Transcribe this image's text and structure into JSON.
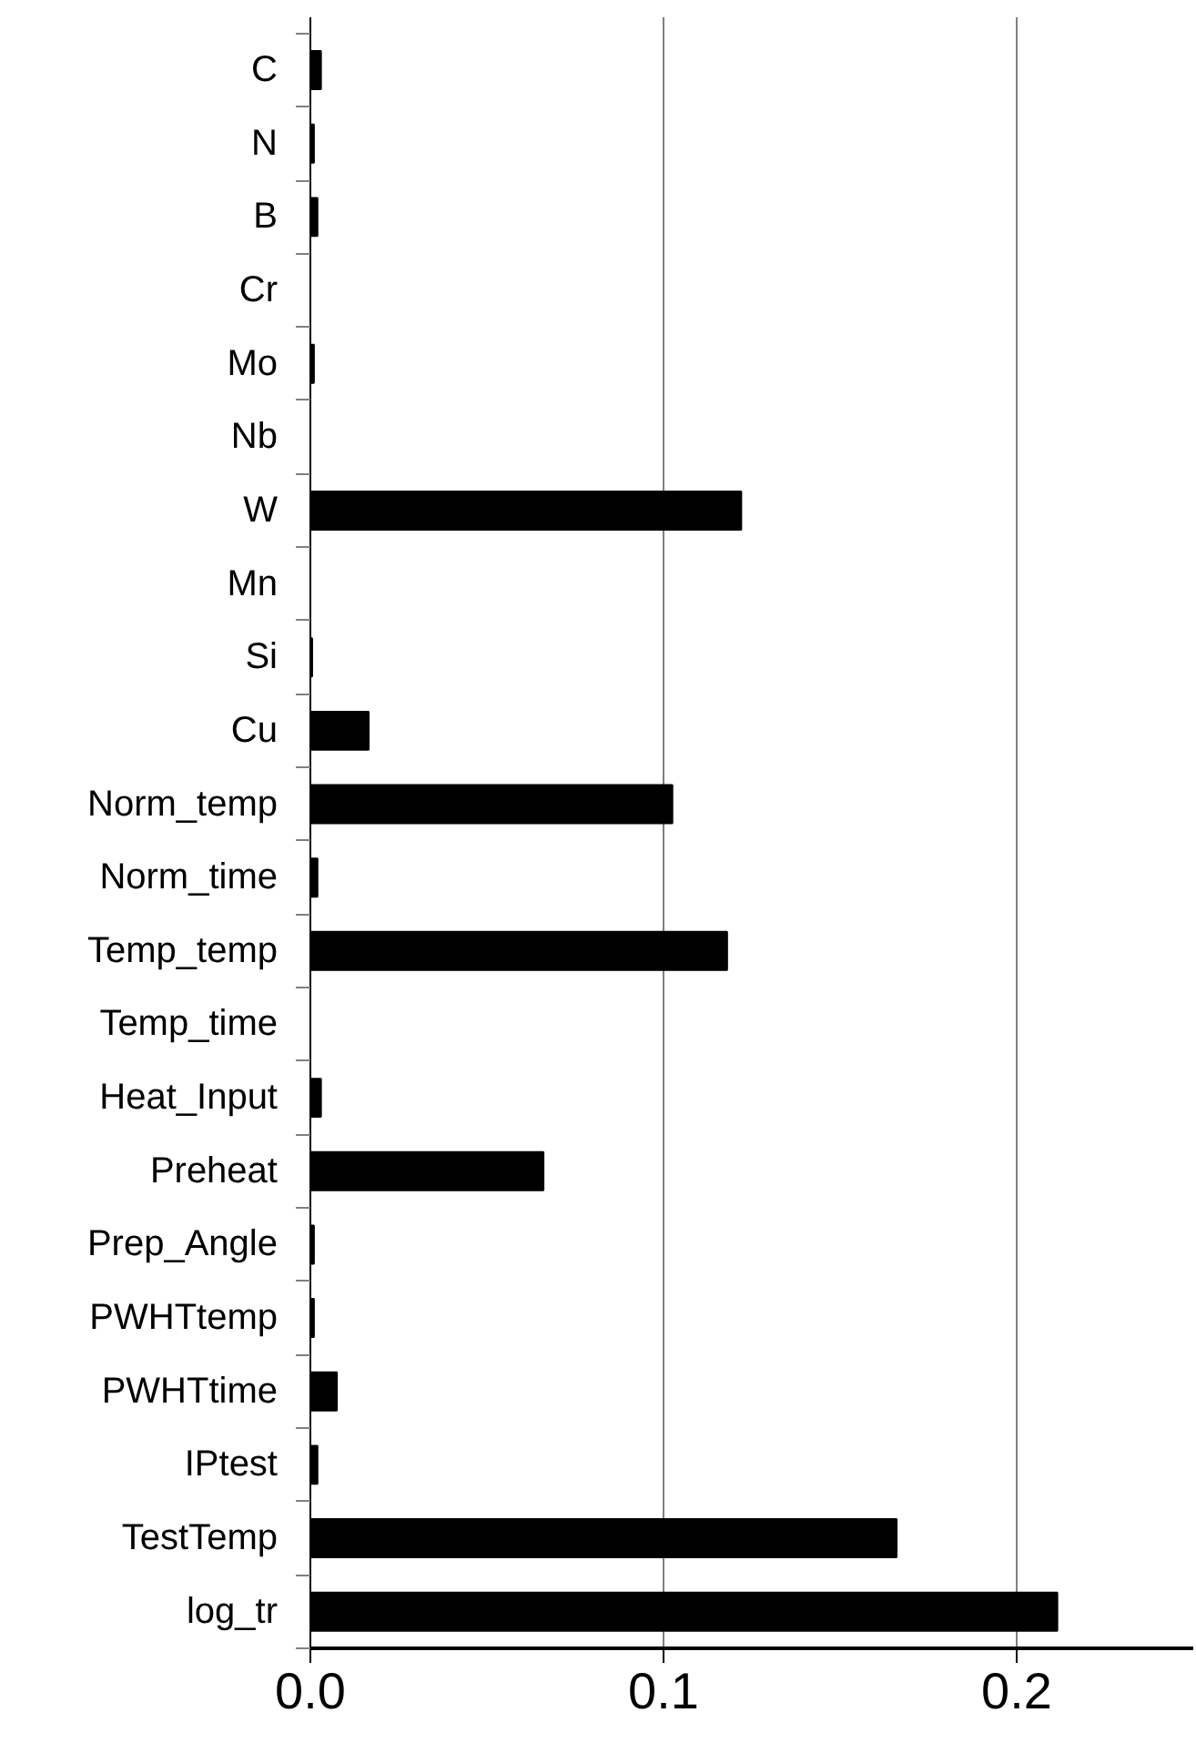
{
  "chart_data": {
    "type": "bar",
    "orientation": "horizontal",
    "categories": [
      "C",
      "N",
      "B",
      "Cr",
      "Mo",
      "Nb",
      "W",
      "Mn",
      "Si",
      "Cu",
      "Norm_temp",
      "Norm_time",
      "Temp_temp",
      "Temp_time",
      "Heat_Input",
      "Preheat",
      "Prep_Angle",
      "PWHTtemp",
      "PWHTtime",
      "IPtest",
      "TestTemp",
      "log_tr"
    ],
    "values": [
      0.003,
      0.001,
      0.002,
      0,
      0.001,
      0,
      0.122,
      0,
      0.0005,
      0.0165,
      0.1025,
      0.002,
      0.118,
      0,
      0.003,
      0.066,
      0.001,
      0.001,
      0.0075,
      0.002,
      0.166,
      0.2115
    ],
    "color": "#000000",
    "xlim": [
      0,
      0.25
    ],
    "xticks": [
      {
        "value": 0,
        "label": "0.0"
      },
      {
        "value": 0.1,
        "label": "0.1"
      },
      {
        "value": 0.2,
        "label": "0.2"
      }
    ],
    "grid": "x"
  }
}
